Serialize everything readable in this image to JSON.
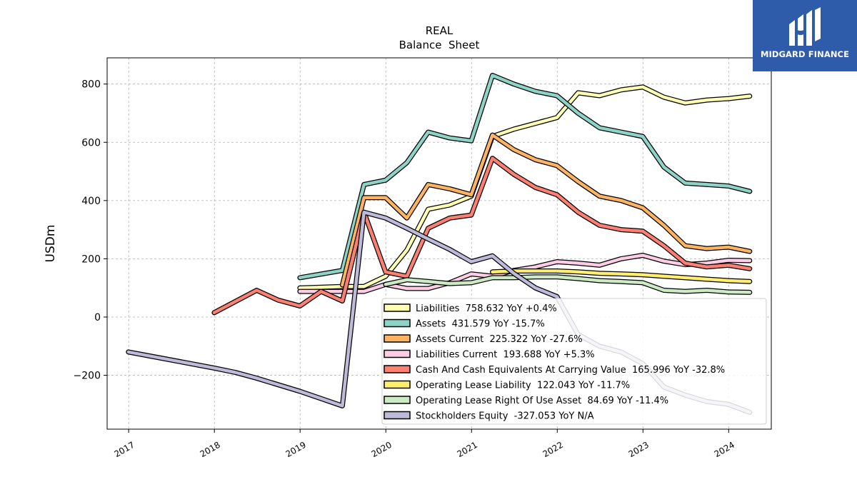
{
  "chart_data": {
    "type": "line",
    "title": "REAL",
    "subtitle": "Balance  Sheet",
    "xlabel": "",
    "ylabel": "USDm",
    "xlim": [
      "2016-10-01",
      "2024-07-01"
    ],
    "ylim": [
      -385,
      890
    ],
    "x_ticks": [
      "2017",
      "2018",
      "2019",
      "2020",
      "2021",
      "2022",
      "2023",
      "2024"
    ],
    "y_ticks": [
      -200,
      0,
      200,
      400,
      600,
      800
    ],
    "y_tick_labels": [
      "−200",
      "0",
      "200",
      "400",
      "600",
      "800"
    ],
    "grid": true,
    "legend_position": "lower-right",
    "series": [
      {
        "name": "Liabilities",
        "legend_label": "Liabilities  758.632 YoY +0.4%",
        "color": "#ffffb3",
        "points": [
          [
            "2018-12-31",
            100
          ],
          [
            "2019-06-30",
            105
          ],
          [
            "2019-09-30",
            105
          ],
          [
            "2019-12-31",
            140
          ],
          [
            "2020-03-31",
            230
          ],
          [
            "2020-06-30",
            370
          ],
          [
            "2020-09-30",
            385
          ],
          [
            "2020-12-31",
            415
          ],
          [
            "2021-03-31",
            620
          ],
          [
            "2021-06-30",
            645
          ],
          [
            "2021-09-30",
            665
          ],
          [
            "2021-12-31",
            685
          ],
          [
            "2022-03-31",
            770
          ],
          [
            "2022-06-30",
            760
          ],
          [
            "2022-09-30",
            780
          ],
          [
            "2022-12-31",
            790
          ],
          [
            "2023-03-31",
            755
          ],
          [
            "2023-06-30",
            735
          ],
          [
            "2023-09-30",
            745
          ],
          [
            "2023-12-31",
            750
          ],
          [
            "2024-03-31",
            758.632
          ]
        ]
      },
      {
        "name": "Assets",
        "legend_label": "Assets  431.579 YoY -15.7%",
        "color": "#8dd3c7",
        "points": [
          [
            "2018-12-31",
            135
          ],
          [
            "2019-06-30",
            160
          ],
          [
            "2019-09-30",
            455
          ],
          [
            "2019-12-31",
            470
          ],
          [
            "2020-03-31",
            530
          ],
          [
            "2020-06-30",
            635
          ],
          [
            "2020-09-30",
            615
          ],
          [
            "2020-12-31",
            605
          ],
          [
            "2021-03-31",
            830
          ],
          [
            "2021-06-30",
            800
          ],
          [
            "2021-09-30",
            775
          ],
          [
            "2021-12-31",
            760
          ],
          [
            "2022-03-31",
            700
          ],
          [
            "2022-06-30",
            650
          ],
          [
            "2022-09-30",
            635
          ],
          [
            "2022-12-31",
            620
          ],
          [
            "2023-03-31",
            515
          ],
          [
            "2023-06-30",
            460
          ],
          [
            "2023-09-30",
            455
          ],
          [
            "2023-12-31",
            450
          ],
          [
            "2024-03-31",
            431.579
          ]
        ]
      },
      {
        "name": "Assets Current",
        "legend_label": "Assets Current  225.322 YoY -27.6%",
        "color": "#fdb462",
        "points": [
          [
            "2019-06-30",
            110
          ],
          [
            "2019-09-30",
            410
          ],
          [
            "2019-12-31",
            410
          ],
          [
            "2020-03-31",
            340
          ],
          [
            "2020-06-30",
            455
          ],
          [
            "2020-09-30",
            440
          ],
          [
            "2020-12-31",
            420
          ],
          [
            "2021-03-31",
            625
          ],
          [
            "2021-06-30",
            575
          ],
          [
            "2021-09-30",
            540
          ],
          [
            "2021-12-31",
            520
          ],
          [
            "2022-03-31",
            465
          ],
          [
            "2022-06-30",
            415
          ],
          [
            "2022-09-30",
            400
          ],
          [
            "2022-12-31",
            375
          ],
          [
            "2023-03-31",
            315
          ],
          [
            "2023-06-30",
            245
          ],
          [
            "2023-09-30",
            235
          ],
          [
            "2023-12-31",
            240
          ],
          [
            "2024-03-31",
            225.322
          ]
        ]
      },
      {
        "name": "Liabilities Current",
        "legend_label": "Liabilities Current  193.688 YoY +5.3%",
        "color": "#fccde5",
        "points": [
          [
            "2018-12-31",
            88
          ],
          [
            "2019-06-30",
            88
          ],
          [
            "2019-09-30",
            88
          ],
          [
            "2019-12-31",
            112
          ],
          [
            "2020-03-31",
            98
          ],
          [
            "2020-06-30",
            98
          ],
          [
            "2020-09-30",
            118
          ],
          [
            "2020-12-31",
            148
          ],
          [
            "2021-03-31",
            140
          ],
          [
            "2021-06-30",
            160
          ],
          [
            "2021-09-30",
            172
          ],
          [
            "2021-12-31",
            190
          ],
          [
            "2022-03-31",
            185
          ],
          [
            "2022-06-30",
            178
          ],
          [
            "2022-09-30",
            200
          ],
          [
            "2022-12-31",
            212
          ],
          [
            "2023-03-31",
            192
          ],
          [
            "2023-06-30",
            180
          ],
          [
            "2023-09-30",
            185
          ],
          [
            "2023-12-31",
            195
          ],
          [
            "2024-03-31",
            193.688
          ]
        ]
      },
      {
        "name": "Cash And Cash Equivalents At Carrying Value",
        "legend_label": "Cash And Cash Equivalents At Carrying Value  165.996 YoY -32.8%",
        "color": "#fb8072",
        "points": [
          [
            "2017-12-31",
            15
          ],
          [
            "2018-06-30",
            92
          ],
          [
            "2018-09-30",
            58
          ],
          [
            "2018-12-31",
            38
          ],
          [
            "2019-03-31",
            88
          ],
          [
            "2019-06-30",
            55
          ],
          [
            "2019-09-30",
            360
          ],
          [
            "2019-12-31",
            155
          ],
          [
            "2020-03-31",
            140
          ],
          [
            "2020-06-30",
            305
          ],
          [
            "2020-09-30",
            340
          ],
          [
            "2020-12-31",
            350
          ],
          [
            "2021-03-31",
            545
          ],
          [
            "2021-06-30",
            490
          ],
          [
            "2021-09-30",
            445
          ],
          [
            "2021-12-31",
            420
          ],
          [
            "2022-03-31",
            360
          ],
          [
            "2022-06-30",
            315
          ],
          [
            "2022-09-30",
            300
          ],
          [
            "2022-12-31",
            295
          ],
          [
            "2023-03-31",
            245
          ],
          [
            "2023-06-30",
            185
          ],
          [
            "2023-09-30",
            172
          ],
          [
            "2023-12-31",
            178
          ],
          [
            "2024-03-31",
            165.996
          ]
        ]
      },
      {
        "name": "Operating Lease Liability",
        "legend_label": "Operating Lease Liability  122.043 YoY -11.7%",
        "color": "#ffed6f",
        "points": [
          [
            "2021-03-31",
            155
          ],
          [
            "2021-06-30",
            158
          ],
          [
            "2021-09-30",
            158
          ],
          [
            "2021-12-31",
            158
          ],
          [
            "2022-03-31",
            155
          ],
          [
            "2022-06-30",
            150
          ],
          [
            "2022-09-30",
            148
          ],
          [
            "2022-12-31",
            145
          ],
          [
            "2023-03-31",
            140
          ],
          [
            "2023-06-30",
            135
          ],
          [
            "2023-09-30",
            130
          ],
          [
            "2023-12-31",
            125
          ],
          [
            "2024-03-31",
            122.043
          ]
        ]
      },
      {
        "name": "Operating Lease Right Of Use Asset",
        "legend_label": "Operating Lease Right Of Use Asset  84.69 YoY -11.4%",
        "color": "#ccebc5",
        "points": [
          [
            "2019-12-31",
            112
          ],
          [
            "2020-03-31",
            128
          ],
          [
            "2020-06-30",
            122
          ],
          [
            "2020-09-30",
            115
          ],
          [
            "2020-12-31",
            118
          ],
          [
            "2021-03-31",
            135
          ],
          [
            "2021-06-30",
            135
          ],
          [
            "2021-09-30",
            138
          ],
          [
            "2021-12-31",
            138
          ],
          [
            "2022-03-31",
            132
          ],
          [
            "2022-06-30",
            125
          ],
          [
            "2022-09-30",
            122
          ],
          [
            "2022-12-31",
            118
          ],
          [
            "2023-03-31",
            92
          ],
          [
            "2023-06-30",
            88
          ],
          [
            "2023-09-30",
            92
          ],
          [
            "2023-12-31",
            86
          ],
          [
            "2024-03-31",
            84.69
          ]
        ]
      },
      {
        "name": "Stockholders Equity",
        "legend_label": "Stockholders Equity  -327.053 YoY N/A",
        "color": "#bebada",
        "points": [
          [
            "2016-12-31",
            -120
          ],
          [
            "2017-12-31",
            -175
          ],
          [
            "2018-03-31",
            -190
          ],
          [
            "2018-06-30",
            -210
          ],
          [
            "2018-12-31",
            -255
          ],
          [
            "2019-06-30",
            -305
          ],
          [
            "2019-09-30",
            360
          ],
          [
            "2019-12-31",
            340
          ],
          [
            "2020-03-31",
            305
          ],
          [
            "2020-06-30",
            268
          ],
          [
            "2020-09-30",
            232
          ],
          [
            "2020-12-31",
            190
          ],
          [
            "2021-03-31",
            210
          ],
          [
            "2021-06-30",
            150
          ],
          [
            "2021-09-30",
            100
          ],
          [
            "2021-12-31",
            70
          ],
          [
            "2022-03-31",
            -60
          ],
          [
            "2022-06-30",
            -100
          ],
          [
            "2022-09-30",
            -120
          ],
          [
            "2022-12-31",
            -160
          ],
          [
            "2023-03-31",
            -240
          ],
          [
            "2023-06-30",
            -268
          ],
          [
            "2023-09-30",
            -290
          ],
          [
            "2023-12-31",
            -300
          ],
          [
            "2024-03-31",
            -327.053
          ]
        ]
      }
    ]
  },
  "logo": {
    "text": "MIDGARD FINANCE",
    "icon": "midgard-logo-icon"
  }
}
